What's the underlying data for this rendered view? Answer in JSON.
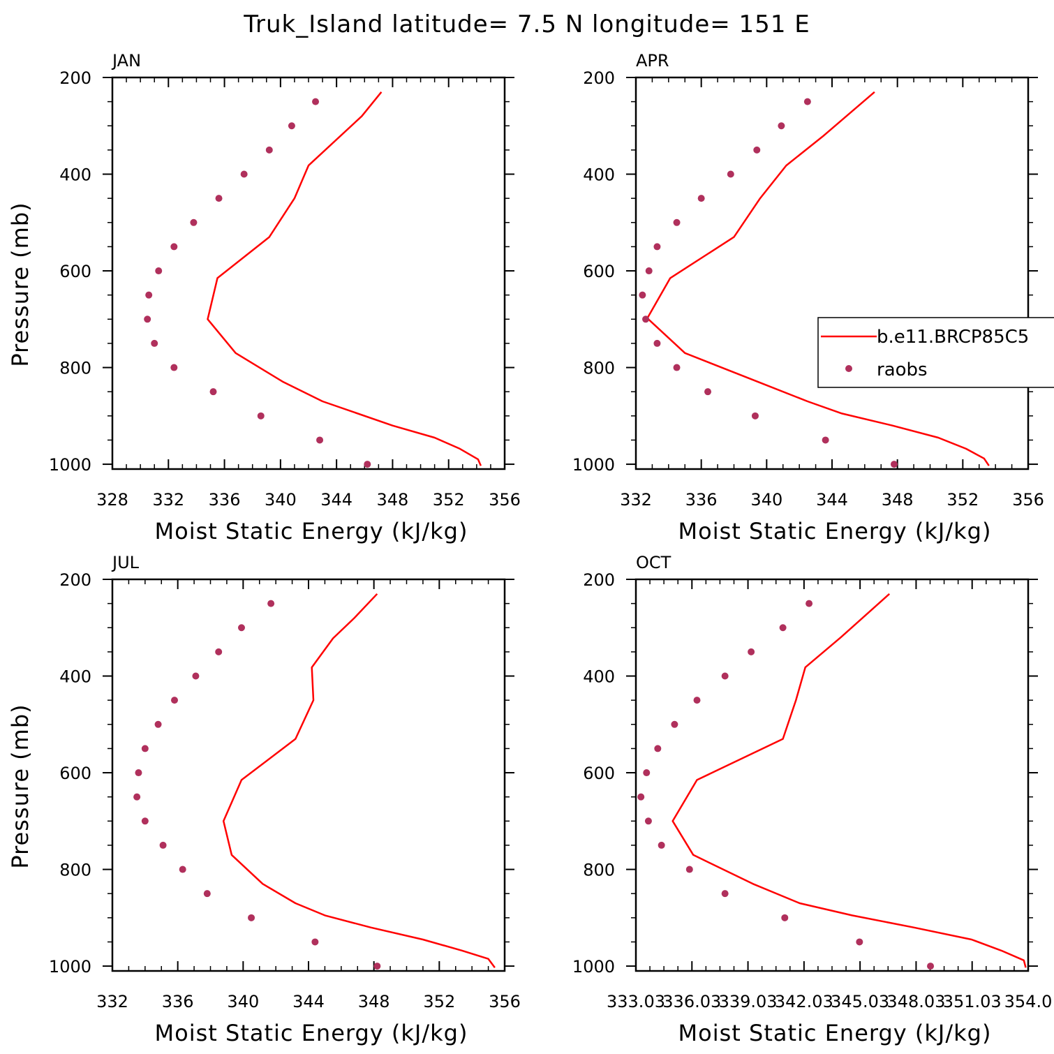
{
  "chart_data": {
    "title": "Truk_Island  latitude= 7.5 N longitude= 151 E",
    "legend": {
      "placement": "right-middle",
      "entries": [
        {
          "label": "b.e11.BRCP85C5",
          "style": "line",
          "color": "#ff0000"
        },
        {
          "label": "raobs",
          "style": "dot",
          "color": "#b0305c"
        }
      ]
    },
    "line_color": "#ff0000",
    "dot_color": "#b0305c",
    "panels": [
      {
        "name": "JAN",
        "type": "line+scatter",
        "xlabel": "Moist Static Energy (kJ/kg)",
        "ylabel": "Pressure (mb)",
        "xlim": [
          328,
          356
        ],
        "ylim_inverted": [
          200,
          1010
        ],
        "xticks": [
          328,
          332,
          336,
          340,
          344,
          348,
          352,
          356
        ],
        "xtick_labels": [
          "328",
          "332",
          "336",
          "340",
          "344",
          "348",
          "352",
          "356"
        ],
        "yticks": [
          200,
          400,
          600,
          800,
          1000
        ],
        "ytick_labels": [
          "200",
          "400",
          "600",
          "800",
          "1000"
        ],
        "model": {
          "pressure": [
            230,
            280,
            382,
            450,
            530,
            615,
            700,
            770,
            830,
            870,
            920,
            945,
            968,
            990,
            1003
          ],
          "mse": [
            347.2,
            345.8,
            342.0,
            341.0,
            339.2,
            335.5,
            334.8,
            336.8,
            340.2,
            343.0,
            348.0,
            351.0,
            352.8,
            354.1,
            354.3
          ]
        },
        "raobs": {
          "pressure": [
            250,
            300,
            350,
            400,
            450,
            500,
            550,
            600,
            650,
            700,
            750,
            800,
            850,
            900,
            950,
            1000
          ],
          "mse": [
            342.5,
            340.8,
            339.2,
            337.4,
            335.6,
            333.8,
            332.4,
            331.3,
            330.6,
            330.5,
            331.0,
            332.4,
            335.2,
            338.6,
            342.8,
            346.2
          ]
        }
      },
      {
        "name": "APR",
        "type": "line+scatter",
        "xlabel": "Moist Static Energy (kJ/kg)",
        "ylabel": "",
        "xlim": [
          332,
          356
        ],
        "ylim_inverted": [
          200,
          1010
        ],
        "xticks": [
          332,
          336,
          340,
          344,
          348,
          352,
          356
        ],
        "xtick_labels": [
          "332",
          "336",
          "340",
          "344",
          "348",
          "352",
          "356"
        ],
        "yticks": [
          200,
          400,
          600,
          800,
          1000
        ],
        "ytick_labels": [
          "200",
          "400",
          "600",
          "800",
          "1000"
        ],
        "model": {
          "pressure": [
            230,
            320,
            382,
            450,
            530,
            615,
            698,
            770,
            830,
            870,
            895,
            920,
            945,
            968,
            988,
            1003
          ],
          "mse": [
            346.6,
            343.5,
            341.2,
            339.6,
            338.0,
            334.1,
            332.7,
            335.0,
            339.5,
            342.5,
            344.6,
            347.7,
            350.5,
            352.2,
            353.3,
            353.6
          ]
        },
        "raobs": {
          "pressure": [
            250,
            300,
            350,
            400,
            450,
            500,
            550,
            600,
            650,
            700,
            750,
            800,
            850,
            900,
            950,
            1000
          ],
          "mse": [
            342.5,
            340.9,
            339.4,
            337.8,
            336.0,
            334.5,
            333.3,
            332.8,
            332.4,
            332.6,
            333.3,
            334.5,
            336.4,
            339.3,
            343.6,
            347.8
          ]
        }
      },
      {
        "name": "JUL",
        "type": "line+scatter",
        "xlabel": "Moist Static Energy (kJ/kg)",
        "ylabel": "Pressure (mb)",
        "xlim": [
          332,
          356
        ],
        "ylim_inverted": [
          200,
          1010
        ],
        "xticks": [
          332,
          336,
          340,
          344,
          348,
          352,
          356
        ],
        "xtick_labels": [
          "332",
          "336",
          "340",
          "344",
          "348",
          "352",
          "356"
        ],
        "yticks": [
          200,
          400,
          600,
          800,
          1000
        ],
        "ytick_labels": [
          "200",
          "400",
          "600",
          "800",
          "1000"
        ],
        "model": {
          "pressure": [
            230,
            280,
            322,
            382,
            450,
            530,
            615,
            700,
            770,
            830,
            870,
            895,
            920,
            945,
            968,
            985,
            1003
          ],
          "mse": [
            348.2,
            346.8,
            345.5,
            344.2,
            344.3,
            343.2,
            339.9,
            338.8,
            339.3,
            341.2,
            343.2,
            345.0,
            347.8,
            351.0,
            353.4,
            355.0,
            355.4
          ]
        },
        "raobs": {
          "pressure": [
            250,
            300,
            350,
            400,
            450,
            500,
            550,
            600,
            650,
            700,
            750,
            800,
            850,
            900,
            950,
            1000
          ],
          "mse": [
            341.7,
            339.9,
            338.5,
            337.1,
            335.8,
            334.8,
            334.0,
            333.6,
            333.5,
            334.0,
            335.1,
            336.3,
            337.8,
            340.5,
            344.4,
            348.2
          ]
        }
      },
      {
        "name": "OCT",
        "type": "line+scatter",
        "xlabel": "Moist Static Energy (kJ/kg)",
        "ylabel": "",
        "xlim": [
          333.03,
          354.03
        ],
        "ylim_inverted": [
          200,
          1010
        ],
        "xticks": [
          333.03,
          336.03,
          339.03,
          342.03,
          345.03,
          348.03,
          351.03,
          354.03
        ],
        "xtick_labels": [
          "333.03",
          "336.03",
          "339.03",
          "342.03",
          "345.03",
          "348.03",
          "351.03",
          "354.0"
        ],
        "yticks": [
          200,
          400,
          600,
          800,
          1000
        ],
        "ytick_labels": [
          "200",
          "400",
          "600",
          "800",
          "1000"
        ],
        "model": {
          "pressure": [
            230,
            320,
            382,
            450,
            530,
            615,
            700,
            770,
            830,
            870,
            895,
            920,
            945,
            968,
            988,
            1003
          ],
          "mse": [
            346.6,
            344.0,
            342.1,
            341.6,
            340.9,
            336.3,
            335.0,
            336.1,
            339.3,
            341.8,
            344.6,
            347.9,
            351.0,
            352.6,
            353.8,
            353.9
          ]
        },
        "raobs": {
          "pressure": [
            250,
            300,
            350,
            400,
            450,
            500,
            550,
            600,
            650,
            700,
            750,
            800,
            850,
            900,
            950,
            1000
          ],
          "mse": [
            342.3,
            340.9,
            339.2,
            337.8,
            336.3,
            335.1,
            334.2,
            333.6,
            333.3,
            333.7,
            334.4,
            335.9,
            337.8,
            341.0,
            345.0,
            348.8
          ]
        }
      }
    ]
  }
}
